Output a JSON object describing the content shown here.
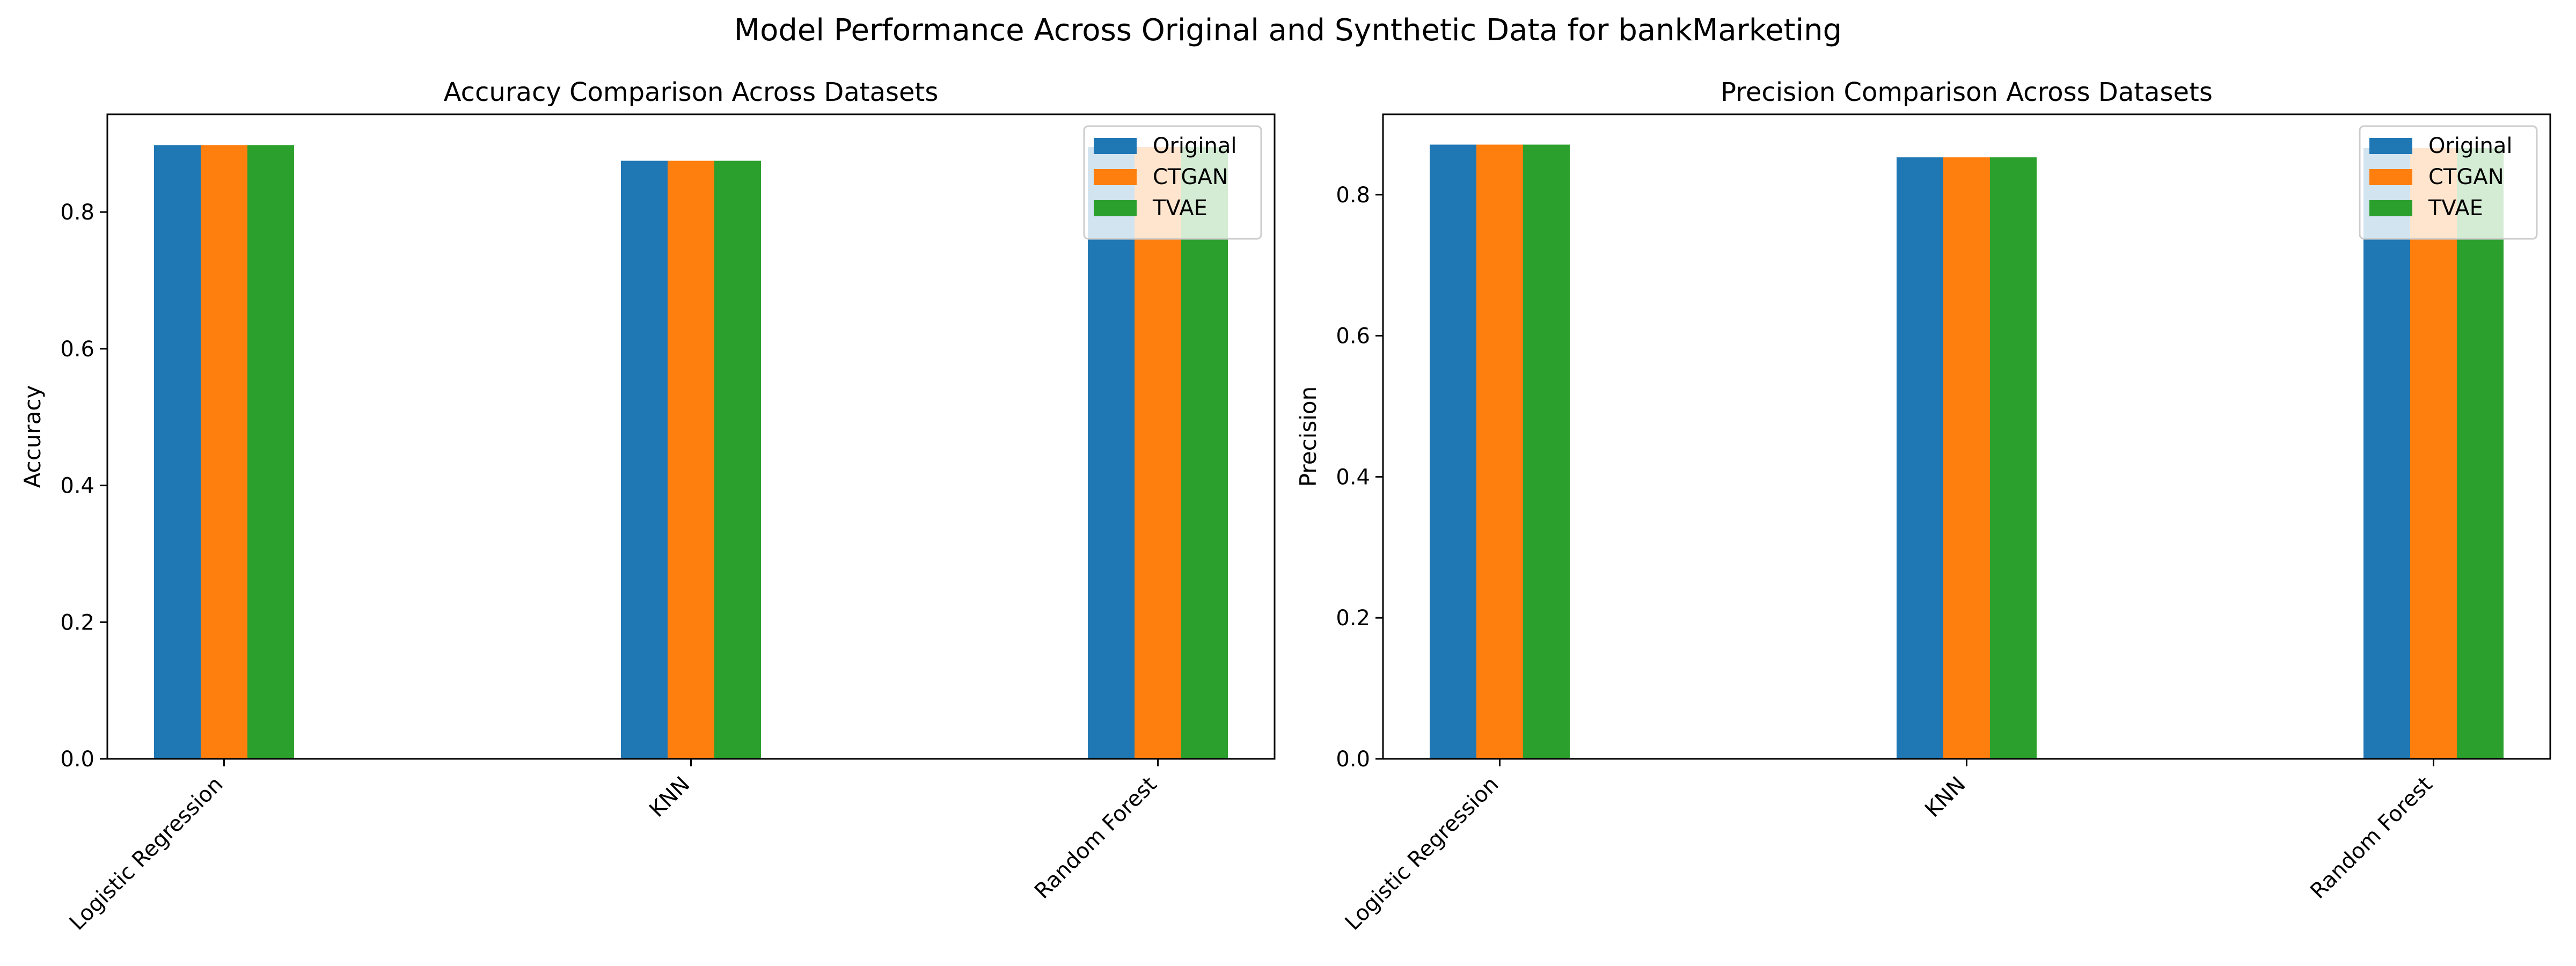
{
  "figure": {
    "title": "Model Performance Across Original and Synthetic Data for bankMarketing"
  },
  "colors": {
    "Original": "#1f77b4",
    "CTGAN": "#ff7f0e",
    "TVAE": "#2ca02c"
  },
  "chart_data": [
    {
      "type": "bar",
      "title": "Accuracy Comparison Across Datasets",
      "xlabel": "",
      "ylabel": "Accuracy",
      "categories": [
        "Logistic Regression",
        "KNN",
        "Random Forest"
      ],
      "series": [
        {
          "name": "Original",
          "values": [
            0.898,
            0.875,
            0.895
          ]
        },
        {
          "name": "CTGAN",
          "values": [
            0.898,
            0.875,
            0.895
          ]
        },
        {
          "name": "TVAE",
          "values": [
            0.898,
            0.875,
            0.895
          ]
        }
      ],
      "ylim": [
        0,
        0.943
      ],
      "yticks": [
        "0.0",
        "0.2",
        "0.4",
        "0.6",
        "0.8"
      ],
      "legend": "top-right",
      "grid": false
    },
    {
      "type": "bar",
      "title": "Precision Comparison Across Datasets",
      "xlabel": "",
      "ylabel": "Precision",
      "categories": [
        "Logistic Regression",
        "KNN",
        "Random Forest"
      ],
      "series": [
        {
          "name": "Original",
          "values": [
            0.871,
            0.853,
            0.866
          ]
        },
        {
          "name": "CTGAN",
          "values": [
            0.871,
            0.853,
            0.866
          ]
        },
        {
          "name": "TVAE",
          "values": [
            0.871,
            0.853,
            0.866
          ]
        }
      ],
      "ylim": [
        0,
        0.914
      ],
      "yticks": [
        "0.0",
        "0.2",
        "0.4",
        "0.6",
        "0.8"
      ],
      "legend": "top-right",
      "grid": false
    }
  ]
}
